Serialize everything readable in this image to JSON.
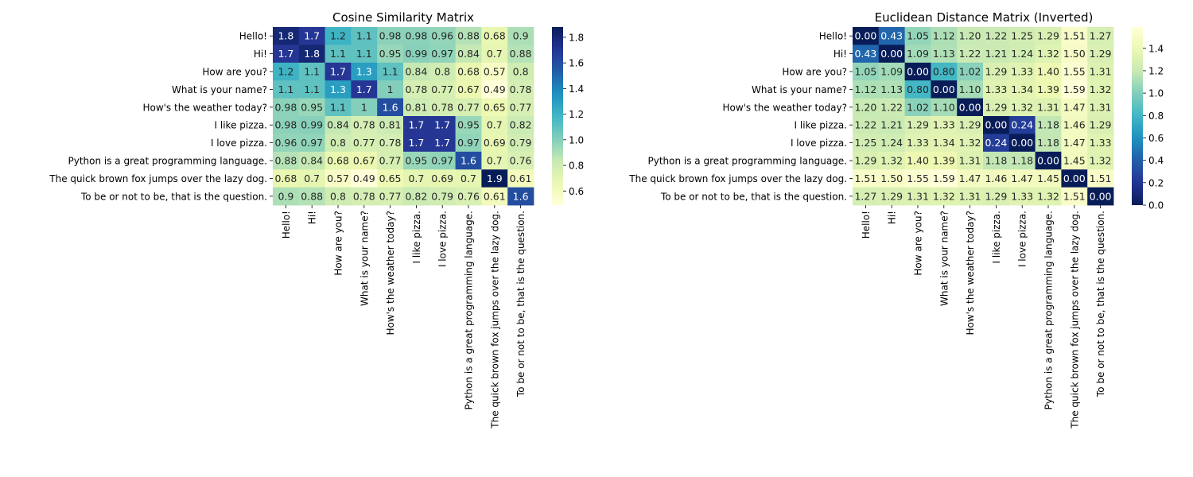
{
  "chart_data": [
    {
      "type": "heatmap",
      "title": "Cosine Similarity Matrix",
      "xlabel": "",
      "ylabel": "",
      "row_labels": [
        "Hello!",
        "Hi!",
        "How are you?",
        "What is your name?",
        "How's the weather today?",
        "I like pizza.",
        "I love pizza.",
        "Python is a great programming language.",
        "The quick brown fox jumps over the lazy dog.",
        "To be or not to be, that is the question."
      ],
      "col_labels": [
        "Hello!",
        "Hi!",
        "How are you?",
        "What is your name?",
        "How's the weather today?",
        "I like pizza.",
        "I love pizza.",
        "Python is a great programming language.",
        "The quick brown fox jumps over the lazy dog.",
        "To be or not to be, that is the question."
      ],
      "values": [
        [
          1.8,
          1.7,
          1.2,
          1.1,
          0.98,
          0.98,
          0.96,
          0.88,
          0.68,
          0.9
        ],
        [
          1.7,
          1.8,
          1.1,
          1.1,
          0.95,
          0.99,
          0.97,
          0.84,
          0.7,
          0.88
        ],
        [
          1.2,
          1.1,
          1.7,
          1.3,
          1.1,
          0.84,
          0.8,
          0.68,
          0.57,
          0.8
        ],
        [
          1.1,
          1.1,
          1.3,
          1.7,
          1,
          0.78,
          0.77,
          0.67,
          0.49,
          0.78
        ],
        [
          0.98,
          0.95,
          1.1,
          1,
          1.6,
          0.81,
          0.78,
          0.77,
          0.65,
          0.77
        ],
        [
          0.98,
          0.99,
          0.84,
          0.78,
          0.81,
          1.7,
          1.7,
          0.95,
          0.7,
          0.82
        ],
        [
          0.96,
          0.97,
          0.8,
          0.77,
          0.78,
          1.7,
          1.7,
          0.97,
          0.69,
          0.79
        ],
        [
          0.88,
          0.84,
          0.68,
          0.67,
          0.77,
          0.95,
          0.97,
          1.6,
          0.7,
          0.76
        ],
        [
          0.68,
          0.7,
          0.57,
          0.49,
          0.65,
          0.7,
          0.69,
          0.7,
          1.9,
          0.61
        ],
        [
          0.9,
          0.88,
          0.8,
          0.78,
          0.77,
          0.82,
          0.79,
          0.76,
          0.61,
          1.6
        ]
      ],
      "value_labels": [
        [
          "1.8",
          "1.7",
          "1.2",
          "1.1",
          "0.98",
          "0.98",
          "0.96",
          "0.88",
          "0.68",
          "0.9"
        ],
        [
          "1.7",
          "1.8",
          "1.1",
          "1.1",
          "0.95",
          "0.99",
          "0.97",
          "0.84",
          "0.7",
          "0.88"
        ],
        [
          "1.2",
          "1.1",
          "1.7",
          "1.3",
          "1.1",
          "0.84",
          "0.8",
          "0.68",
          "0.57",
          "0.8"
        ],
        [
          "1.1",
          "1.1",
          "1.3",
          "1.7",
          "1",
          "0.78",
          "0.77",
          "0.67",
          "0.49",
          "0.78"
        ],
        [
          "0.98",
          "0.95",
          "1.1",
          "1",
          "1.6",
          "0.81",
          "0.78",
          "0.77",
          "0.65",
          "0.77"
        ],
        [
          "0.98",
          "0.99",
          "0.84",
          "0.78",
          "0.81",
          "1.7",
          "1.7",
          "0.95",
          "0.7",
          "0.82"
        ],
        [
          "0.96",
          "0.97",
          "0.8",
          "0.77",
          "0.78",
          "1.7",
          "1.7",
          "0.97",
          "0.69",
          "0.79"
        ],
        [
          "0.88",
          "0.84",
          "0.68",
          "0.67",
          "0.77",
          "0.95",
          "0.97",
          "1.6",
          "0.7",
          "0.76"
        ],
        [
          "0.68",
          "0.7",
          "0.57",
          "0.49",
          "0.65",
          "0.7",
          "0.69",
          "0.7",
          "1.9",
          "0.61"
        ],
        [
          "0.9",
          "0.88",
          "0.8",
          "0.78",
          "0.77",
          "0.82",
          "0.79",
          "0.76",
          "0.61",
          "1.6"
        ]
      ],
      "colormap": "YlGnBu",
      "vmin": 0.49,
      "vmax": 1.88,
      "colorbar_ticks": [
        0.6,
        0.8,
        1.0,
        1.2,
        1.4,
        1.6,
        1.8
      ],
      "colorbar_tick_labels": [
        "0.6",
        "0.8",
        "1.0",
        "1.2",
        "1.4",
        "1.6",
        "1.8"
      ],
      "grid": false
    },
    {
      "type": "heatmap",
      "title": "Euclidean Distance Matrix (Inverted)",
      "xlabel": "",
      "ylabel": "",
      "row_labels": [
        "Hello!",
        "Hi!",
        "How are you?",
        "What is your name?",
        "How's the weather today?",
        "I like pizza.",
        "I love pizza.",
        "Python is a great programming language.",
        "The quick brown fox jumps over the lazy dog.",
        "To be or not to be, that is the question."
      ],
      "col_labels": [
        "Hello!",
        "Hi!",
        "How are you?",
        "What is your name?",
        "How's the weather today?",
        "I like pizza.",
        "I love pizza.",
        "Python is a great programming language.",
        "The quick brown fox jumps over the lazy dog.",
        "To be or not to be, that is the question."
      ],
      "values": [
        [
          0.0,
          0.43,
          1.05,
          1.12,
          1.2,
          1.22,
          1.25,
          1.29,
          1.51,
          1.27
        ],
        [
          0.43,
          0.0,
          1.09,
          1.13,
          1.22,
          1.21,
          1.24,
          1.32,
          1.5,
          1.29
        ],
        [
          1.05,
          1.09,
          0.0,
          0.8,
          1.02,
          1.29,
          1.33,
          1.4,
          1.55,
          1.31
        ],
        [
          1.12,
          1.13,
          0.8,
          0.0,
          1.1,
          1.33,
          1.34,
          1.39,
          1.59,
          1.32
        ],
        [
          1.2,
          1.22,
          1.02,
          1.1,
          0.0,
          1.29,
          1.32,
          1.31,
          1.47,
          1.31
        ],
        [
          1.22,
          1.21,
          1.29,
          1.33,
          1.29,
          0.0,
          0.24,
          1.18,
          1.46,
          1.29
        ],
        [
          1.25,
          1.24,
          1.33,
          1.34,
          1.32,
          0.24,
          0.0,
          1.18,
          1.47,
          1.33
        ],
        [
          1.29,
          1.32,
          1.4,
          1.39,
          1.31,
          1.18,
          1.18,
          0.0,
          1.45,
          1.32
        ],
        [
          1.51,
          1.5,
          1.55,
          1.59,
          1.47,
          1.46,
          1.47,
          1.45,
          0.0,
          1.51
        ],
        [
          1.27,
          1.29,
          1.31,
          1.32,
          1.31,
          1.29,
          1.33,
          1.32,
          1.51,
          0.0
        ]
      ],
      "value_labels": [
        [
          "0.00",
          "0.43",
          "1.05",
          "1.12",
          "1.20",
          "1.22",
          "1.25",
          "1.29",
          "1.51",
          "1.27"
        ],
        [
          "0.43",
          "0.00",
          "1.09",
          "1.13",
          "1.22",
          "1.21",
          "1.24",
          "1.32",
          "1.50",
          "1.29"
        ],
        [
          "1.05",
          "1.09",
          "0.00",
          "0.80",
          "1.02",
          "1.29",
          "1.33",
          "1.40",
          "1.55",
          "1.31"
        ],
        [
          "1.12",
          "1.13",
          "0.80",
          "0.00",
          "1.10",
          "1.33",
          "1.34",
          "1.39",
          "1.59",
          "1.32"
        ],
        [
          "1.20",
          "1.22",
          "1.02",
          "1.10",
          "0.00",
          "1.29",
          "1.32",
          "1.31",
          "1.47",
          "1.31"
        ],
        [
          "1.22",
          "1.21",
          "1.29",
          "1.33",
          "1.29",
          "0.00",
          "0.24",
          "1.18",
          "1.46",
          "1.29"
        ],
        [
          "1.25",
          "1.24",
          "1.33",
          "1.34",
          "1.32",
          "0.24",
          "0.00",
          "1.18",
          "1.47",
          "1.33"
        ],
        [
          "1.29",
          "1.32",
          "1.40",
          "1.39",
          "1.31",
          "1.18",
          "1.18",
          "0.00",
          "1.45",
          "1.32"
        ],
        [
          "1.51",
          "1.50",
          "1.55",
          "1.59",
          "1.47",
          "1.46",
          "1.47",
          "1.45",
          "0.00",
          "1.51"
        ],
        [
          "1.27",
          "1.29",
          "1.31",
          "1.32",
          "1.31",
          "1.29",
          "1.33",
          "1.32",
          "1.51",
          "0.00"
        ]
      ],
      "colormap": "YlGnBu_r",
      "vmin": 0.0,
      "vmax": 1.59,
      "colorbar_ticks": [
        0.0,
        0.2,
        0.4,
        0.6,
        0.8,
        1.0,
        1.2,
        1.4
      ],
      "colorbar_tick_labels": [
        "0.0",
        "0.2",
        "0.4",
        "0.6",
        "0.8",
        "1.0",
        "1.2",
        "1.4"
      ],
      "grid": false
    }
  ]
}
